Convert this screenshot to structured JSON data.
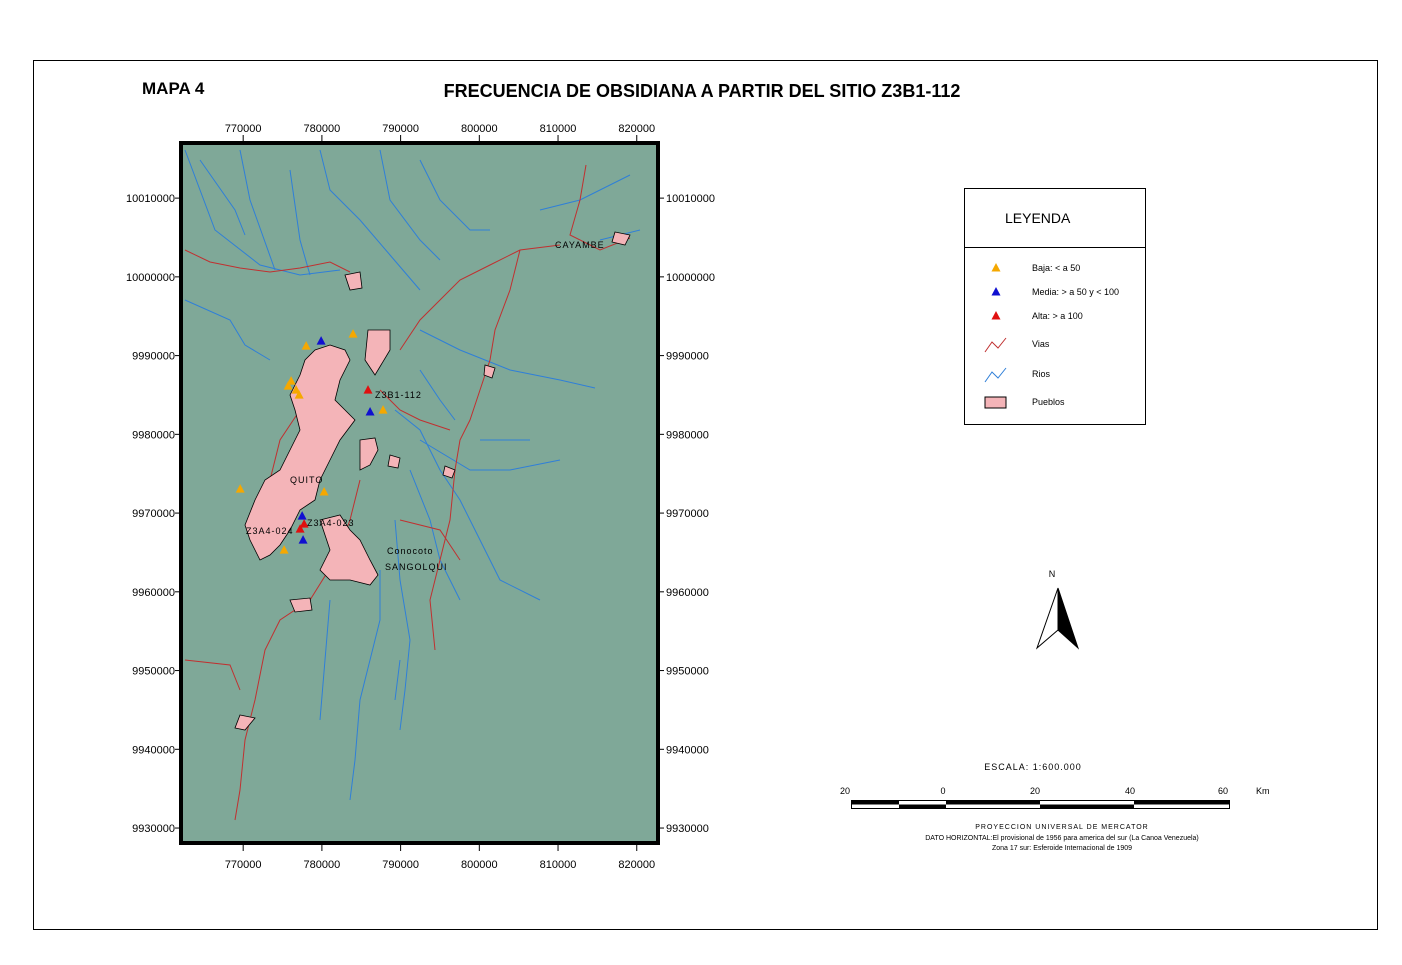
{
  "header": {
    "map_number": "MAPA 4",
    "title": "FRECUENCIA DE OBSIDIANA A PARTIR DEL SITIO Z3B1-112"
  },
  "map": {
    "xlim": [
      762100,
      822700
    ],
    "ylim": [
      9928100,
      10017000
    ],
    "xticks": [
      770000,
      780000,
      790000,
      800000,
      810000,
      820000
    ],
    "yticks": [
      9930000,
      9940000,
      9950000,
      9960000,
      9970000,
      9980000,
      9990000,
      10000000,
      10010000
    ],
    "background": "#7fa898",
    "site_groups": [
      {
        "name": "Baja: < a 50",
        "color": "#f5a800",
        "x": [
          778000,
          783960,
          776090,
          775710,
          776730,
          777110,
          787770,
          769620,
          780280,
          775200
        ],
        "y": [
          9991200,
          9992730,
          9986760,
          9986130,
          9985620,
          9984980,
          9983080,
          9973050,
          9972670,
          9965300
        ]
      },
      {
        "name": "Media: > a 50 y < 100",
        "color": "#1010d0",
        "x": [
          779900,
          786120,
          777490,
          777610
        ],
        "y": [
          9991840,
          9982830,
          9969620,
          9966570
        ]
      },
      {
        "name": "Alta: > a 100",
        "color": "#e01010",
        "x": [
          785860,
          777230,
          777740
        ],
        "y": [
          9985620,
          9967970,
          9968600
        ]
      }
    ],
    "labels": [
      "Z3B1-112",
      "QUITO",
      "Z3A4-023",
      "Z3A4-024",
      "Conocoto",
      "SANGOLQUI",
      "CAYAMBE"
    ]
  },
  "legend": {
    "title": "LEYENDA",
    "roads": "Vias",
    "rivers": "Rios",
    "towns": "Pueblos"
  },
  "north": "N",
  "scale": {
    "title": "ESCALA: 1:600.000",
    "labels": [
      "20",
      "0",
      "20",
      "40",
      "60"
    ],
    "unit": "Km",
    "notes": [
      "PROYECCION UNIVERSAL DE MERCATOR",
      "DATO HORIZONTAL:El provisional de 1956 para america del sur (La Canoa Venezuela)",
      "Zona 17 sur: Esferoide Internacional de 1909"
    ]
  }
}
